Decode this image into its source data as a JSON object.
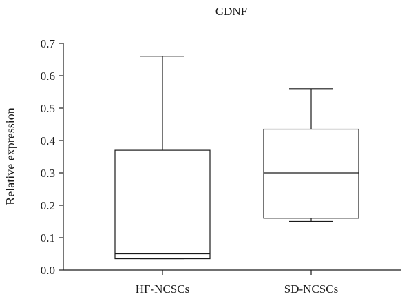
{
  "chart_data": {
    "type": "box",
    "title": "GDNF",
    "xlabel": "",
    "ylabel": "Relative expression",
    "ylim": [
      0,
      0.7
    ],
    "yticks": [
      "0.0",
      "0.1",
      "0.2",
      "0.3",
      "0.4",
      "0.5",
      "0.6",
      "0.7"
    ],
    "categories": [
      "HF-NCSCs",
      "SD-NCSCs"
    ],
    "boxes": [
      {
        "category": "HF-NCSCs",
        "min": 0.035,
        "q1": 0.035,
        "median": 0.05,
        "q3": 0.37,
        "max": 0.66
      },
      {
        "category": "SD-NCSCs",
        "min": 0.15,
        "q1": 0.16,
        "median": 0.3,
        "q3": 0.435,
        "max": 0.56
      }
    ],
    "grid": false,
    "legend": "none"
  }
}
